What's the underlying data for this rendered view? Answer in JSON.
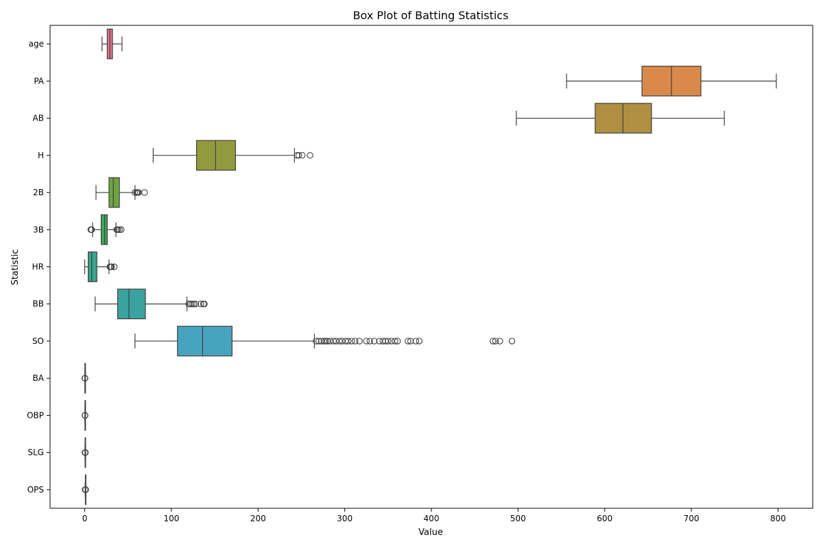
{
  "chart_data": {
    "type": "box",
    "orientation": "horizontal",
    "title": "Box Plot of Batting Statistics",
    "xlabel": "Value",
    "ylabel": "Statistic",
    "xlim": [
      -40,
      840
    ],
    "xticks": [
      0,
      100,
      200,
      300,
      400,
      500,
      600,
      700,
      800
    ],
    "grid": false,
    "categories": [
      "age",
      "PA",
      "AB",
      "H",
      "2B",
      "3B",
      "HR",
      "BB",
      "SO",
      "BA",
      "OBP",
      "SLG",
      "OPS"
    ],
    "colors": [
      "#e3768b",
      "#d98a4b",
      "#b08f42",
      "#939a3d",
      "#6fa441",
      "#3ea85d",
      "#3ba48c",
      "#3ba39f",
      "#48a3bf",
      "#62a8e3",
      "#95a6e8",
      "#cc99e4",
      "#e48cc0"
    ],
    "series": [
      {
        "category": "age",
        "whisker_low": 20,
        "q1": 26,
        "median": 29,
        "q3": 32,
        "whisker_high": 43,
        "outliers": []
      },
      {
        "category": "PA",
        "whisker_low": 556,
        "q1": 643,
        "median": 677,
        "q3": 711,
        "whisker_high": 798,
        "outliers": []
      },
      {
        "category": "AB",
        "whisker_low": 498,
        "q1": 589,
        "median": 621,
        "q3": 654,
        "whisker_high": 738,
        "outliers": []
      },
      {
        "category": "H",
        "whisker_low": 79,
        "q1": 129,
        "median": 151,
        "q3": 174,
        "whisker_high": 242,
        "outliers": [
          245,
          247,
          251,
          260
        ]
      },
      {
        "category": "2B",
        "whisker_low": 13,
        "q1": 28,
        "median": 33,
        "q3": 40,
        "whisker_high": 58,
        "outliers": [
          58,
          60,
          61,
          62,
          69
        ]
      },
      {
        "category": "3B",
        "whisker_low": 9,
        "q1": 19,
        "median": 23,
        "q3": 26,
        "whisker_high": 36,
        "outliers": [
          7,
          8,
          37,
          38,
          40,
          42
        ]
      },
      {
        "category": "HR",
        "whisker_low": 0,
        "q1": 4,
        "median": 8,
        "q3": 14,
        "whisker_high": 28,
        "outliers": [
          29,
          30,
          31,
          34
        ]
      },
      {
        "category": "BB",
        "whisker_low": 12,
        "q1": 38,
        "median": 51,
        "q3": 70,
        "whisker_high": 118,
        "outliers": [
          120,
          122,
          124,
          126,
          128,
          134,
          137,
          138
        ]
      },
      {
        "category": "SO",
        "whisker_low": 58,
        "q1": 107,
        "median": 136,
        "q3": 170,
        "whisker_high": 265,
        "outliers": [
          267,
          270,
          273,
          276,
          278,
          280,
          283,
          287,
          290,
          294,
          297,
          301,
          304,
          308,
          312,
          317,
          325,
          329,
          334,
          340,
          344,
          347,
          350,
          354,
          358,
          361,
          373,
          376,
          382,
          386,
          471,
          474,
          479,
          493
        ]
      },
      {
        "category": "BA",
        "whisker_low": 0.2,
        "q1": 0.26,
        "median": 0.28,
        "q3": 0.3,
        "whisker_high": 0.35,
        "outliers": [
          0.1,
          0.38
        ]
      },
      {
        "category": "OBP",
        "whisker_low": 0.27,
        "q1": 0.33,
        "median": 0.35,
        "q3": 0.37,
        "whisker_high": 0.43,
        "outliers": [
          0.2,
          0.47
        ]
      },
      {
        "category": "SLG",
        "whisker_low": 0.3,
        "q1": 0.41,
        "median": 0.45,
        "q3": 0.5,
        "whisker_high": 0.62,
        "outliers": [
          0.25,
          0.72
        ]
      },
      {
        "category": "OPS",
        "whisker_low": 0.58,
        "q1": 0.74,
        "median": 0.8,
        "q3": 0.86,
        "whisker_high": 1.02,
        "outliers": [
          0.45,
          1.1
        ]
      }
    ]
  }
}
